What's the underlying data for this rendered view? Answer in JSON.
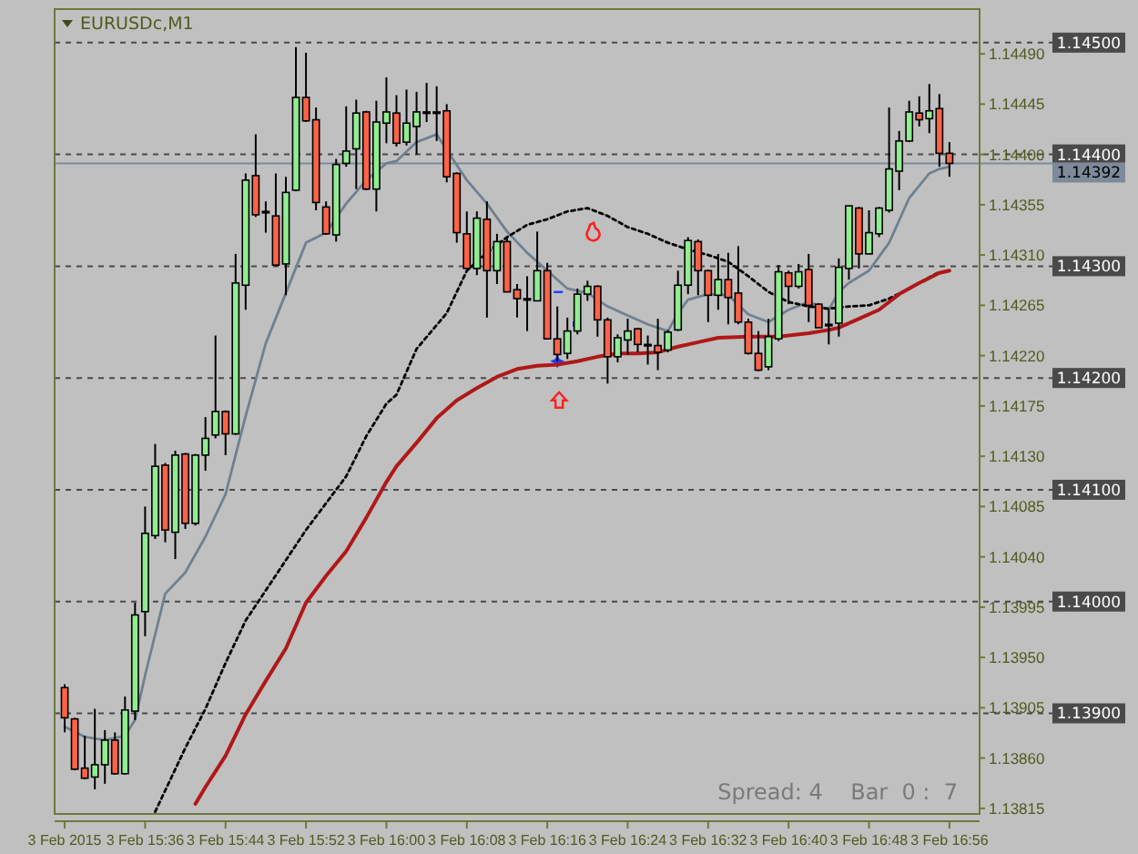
{
  "chart_data": {
    "type": "candlestick",
    "title": "EURUSDc,M1",
    "x": [
      "2015-02-03T15:28",
      "2015-02-03T15:29",
      "2015-02-03T15:30",
      "2015-02-03T15:31",
      "2015-02-03T15:32",
      "2015-02-03T15:33",
      "2015-02-03T15:34",
      "2015-02-03T15:35",
      "2015-02-03T15:36",
      "2015-02-03T15:37",
      "2015-02-03T15:38",
      "2015-02-03T15:39",
      "2015-02-03T15:40",
      "2015-02-03T15:41",
      "2015-02-03T15:42",
      "2015-02-03T15:43",
      "2015-02-03T15:44",
      "2015-02-03T15:45",
      "2015-02-03T15:46",
      "2015-02-03T15:47",
      "2015-02-03T15:48",
      "2015-02-03T15:49",
      "2015-02-03T15:50",
      "2015-02-03T15:51",
      "2015-02-03T15:52",
      "2015-02-03T15:53",
      "2015-02-03T15:54",
      "2015-02-03T15:55",
      "2015-02-03T15:56",
      "2015-02-03T15:57",
      "2015-02-03T15:58",
      "2015-02-03T15:59",
      "2015-02-03T16:00",
      "2015-02-03T16:01",
      "2015-02-03T16:02",
      "2015-02-03T16:03",
      "2015-02-03T16:04",
      "2015-02-03T16:05",
      "2015-02-03T16:06",
      "2015-02-03T16:07",
      "2015-02-03T16:08",
      "2015-02-03T16:09",
      "2015-02-03T16:10",
      "2015-02-03T16:11",
      "2015-02-03T16:12",
      "2015-02-03T16:13",
      "2015-02-03T16:14",
      "2015-02-03T16:15",
      "2015-02-03T16:16",
      "2015-02-03T16:17",
      "2015-02-03T16:18",
      "2015-02-03T16:19",
      "2015-02-03T16:20",
      "2015-02-03T16:21",
      "2015-02-03T16:22",
      "2015-02-03T16:23",
      "2015-02-03T16:24",
      "2015-02-03T16:25",
      "2015-02-03T16:26",
      "2015-02-03T16:27",
      "2015-02-03T16:28",
      "2015-02-03T16:29",
      "2015-02-03T16:30",
      "2015-02-03T16:31",
      "2015-02-03T16:32",
      "2015-02-03T16:33",
      "2015-02-03T16:34",
      "2015-02-03T16:35",
      "2015-02-03T16:36",
      "2015-02-03T16:37",
      "2015-02-03T16:38",
      "2015-02-03T16:39",
      "2015-02-03T16:40",
      "2015-02-03T16:41",
      "2015-02-03T16:42",
      "2015-02-03T16:43",
      "2015-02-03T16:44",
      "2015-02-03T16:45",
      "2015-02-03T16:46",
      "2015-02-03T16:47",
      "2015-02-03T16:48",
      "2015-02-03T16:49",
      "2015-02-03T16:50",
      "2015-02-03T16:51",
      "2015-02-03T16:52",
      "2015-02-03T16:53",
      "2015-02-03T16:54",
      "2015-02-03T16:55",
      "2015-02-03T16:56"
    ],
    "ohlc": [
      [
        1.13923,
        1.13926,
        1.13883,
        1.13896
      ],
      [
        1.13895,
        1.13896,
        1.13849,
        1.1385
      ],
      [
        1.13851,
        1.1388,
        1.13841,
        1.13842
      ],
      [
        1.13843,
        1.13904,
        1.13832,
        1.13854
      ],
      [
        1.13854,
        1.13885,
        1.13837,
        1.13876
      ],
      [
        1.13876,
        1.13883,
        1.13845,
        1.13846
      ],
      [
        1.13846,
        1.13915,
        1.13845,
        1.13903
      ],
      [
        1.13902,
        1.13999,
        1.13894,
        1.13988
      ],
      [
        1.13991,
        1.14085,
        1.13969,
        1.14061
      ],
      [
        1.14059,
        1.14141,
        1.14056,
        1.14121
      ],
      [
        1.14122,
        1.14124,
        1.14053,
        1.14064
      ],
      [
        1.14062,
        1.14135,
        1.14038,
        1.14131
      ],
      [
        1.14132,
        1.14133,
        1.14065,
        1.1407
      ],
      [
        1.1407,
        1.14132,
        1.14068,
        1.14131
      ],
      [
        1.14131,
        1.14165,
        1.14117,
        1.14146
      ],
      [
        1.14149,
        1.14238,
        1.14146,
        1.1417
      ],
      [
        1.1417,
        1.14171,
        1.14131,
        1.1415
      ],
      [
        1.1415,
        1.14311,
        1.14149,
        1.14285
      ],
      [
        1.14283,
        1.14383,
        1.14261,
        1.14377
      ],
      [
        1.14381,
        1.14418,
        1.14344,
        1.14346
      ],
      [
        1.14349,
        1.14358,
        1.1433,
        1.14348
      ],
      [
        1.14345,
        1.14383,
        1.143,
        1.14301
      ],
      [
        1.14302,
        1.1438,
        1.14274,
        1.14366
      ],
      [
        1.14368,
        1.14496,
        1.14367,
        1.14451
      ],
      [
        1.14451,
        1.14491,
        1.14429,
        1.1443
      ],
      [
        1.14431,
        1.14442,
        1.1435,
        1.14357
      ],
      [
        1.14353,
        1.14358,
        1.14328,
        1.14329
      ],
      [
        1.14328,
        1.14396,
        1.14322,
        1.14391
      ],
      [
        1.14392,
        1.14443,
        1.14389,
        1.14403
      ],
      [
        1.14405,
        1.14449,
        1.14369,
        1.14437
      ],
      [
        1.14438,
        1.14439,
        1.14368,
        1.14369
      ],
      [
        1.14369,
        1.14448,
        1.14349,
        1.14429
      ],
      [
        1.14428,
        1.14469,
        1.1441,
        1.14438
      ],
      [
        1.14437,
        1.14453,
        1.14407,
        1.1441
      ],
      [
        1.14411,
        1.14458,
        1.14408,
        1.14428
      ],
      [
        1.14425,
        1.14456,
        1.144,
        1.14438
      ],
      [
        1.14438,
        1.14464,
        1.14429,
        1.14438
      ],
      [
        1.14438,
        1.14461,
        1.14412,
        1.14438
      ],
      [
        1.14439,
        1.14445,
        1.14375,
        1.1438
      ],
      [
        1.14383,
        1.14384,
        1.14321,
        1.1433
      ],
      [
        1.14329,
        1.14349,
        1.14298,
        1.14298
      ],
      [
        1.14298,
        1.14349,
        1.14292,
        1.14343
      ],
      [
        1.14342,
        1.14358,
        1.14254,
        1.14296
      ],
      [
        1.14296,
        1.14329,
        1.14284,
        1.14322
      ],
      [
        1.14322,
        1.14326,
        1.14277,
        1.14277
      ],
      [
        1.14279,
        1.14284,
        1.14254,
        1.14271
      ],
      [
        1.14271,
        1.14291,
        1.14242,
        1.14271
      ],
      [
        1.14269,
        1.14331,
        1.14269,
        1.14296
      ],
      [
        1.14296,
        1.14303,
        1.14235,
        1.14235
      ],
      [
        1.14235,
        1.14264,
        1.14215,
        1.14221
      ],
      [
        1.14222,
        1.14254,
        1.14217,
        1.14242
      ],
      [
        1.14242,
        1.1428,
        1.14239,
        1.14275
      ],
      [
        1.14275,
        1.14287,
        1.14269,
        1.14282
      ],
      [
        1.14282,
        1.14283,
        1.14237,
        1.14252
      ],
      [
        1.14252,
        1.14254,
        1.14195,
        1.14219
      ],
      [
        1.14219,
        1.14239,
        1.14214,
        1.14236
      ],
      [
        1.14234,
        1.14253,
        1.14221,
        1.14242
      ],
      [
        1.14244,
        1.14245,
        1.14223,
        1.1423
      ],
      [
        1.1423,
        1.14238,
        1.14212,
        1.1423
      ],
      [
        1.14229,
        1.14253,
        1.14207,
        1.14223
      ],
      [
        1.14225,
        1.14243,
        1.14223,
        1.14241
      ],
      [
        1.14243,
        1.14296,
        1.14242,
        1.14283
      ],
      [
        1.14283,
        1.14326,
        1.14275,
        1.14323
      ],
      [
        1.14322,
        1.14324,
        1.14274,
        1.14296
      ],
      [
        1.14296,
        1.14297,
        1.1425,
        1.14274
      ],
      [
        1.14274,
        1.14311,
        1.14261,
        1.14288
      ],
      [
        1.14288,
        1.14312,
        1.14248,
        1.14272
      ],
      [
        1.14276,
        1.14318,
        1.14248,
        1.1425
      ],
      [
        1.1425,
        1.14253,
        1.14221,
        1.14222
      ],
      [
        1.14222,
        1.14242,
        1.14206,
        1.14207
      ],
      [
        1.1421,
        1.14253,
        1.14207,
        1.14237
      ],
      [
        1.14235,
        1.14301,
        1.14233,
        1.14295
      ],
      [
        1.14294,
        1.14296,
        1.14266,
        1.14282
      ],
      [
        1.14282,
        1.14302,
        1.1428,
        1.14295
      ],
      [
        1.14297,
        1.14311,
        1.1425,
        1.14265
      ],
      [
        1.14266,
        1.14267,
        1.14245,
        1.14245
      ],
      [
        1.14248,
        1.14261,
        1.1423,
        1.14248
      ],
      [
        1.14249,
        1.14307,
        1.14237,
        1.14299
      ],
      [
        1.14298,
        1.14354,
        1.14288,
        1.14354
      ],
      [
        1.14352,
        1.14353,
        1.14298,
        1.14311
      ],
      [
        1.14311,
        1.1435,
        1.14311,
        1.1433
      ],
      [
        1.14329,
        1.14353,
        1.14326,
        1.14352
      ],
      [
        1.1435,
        1.14442,
        1.14348,
        1.14387
      ],
      [
        1.14385,
        1.14421,
        1.14368,
        1.14412
      ],
      [
        1.14412,
        1.14448,
        1.14411,
        1.14438
      ],
      [
        1.14437,
        1.14452,
        1.14425,
        1.14431
      ],
      [
        1.14432,
        1.14463,
        1.14419,
        1.14439
      ],
      [
        1.14441,
        1.14454,
        1.14389,
        1.14401
      ],
      [
        1.14401,
        1.14411,
        1.1438,
        1.14392
      ]
    ],
    "colors": [
      "#ff6347",
      "#ff6347",
      "#ff6347",
      "#90ee90",
      "#90ee90",
      "#ff6347",
      "#90ee90",
      "#90ee90",
      "#90ee90",
      "#90ee90",
      "#ff6347",
      "#90ee90",
      "#ff6347",
      "#90ee90",
      "#90ee90",
      "#90ee90",
      "#ff6347",
      "#90ee90",
      "#90ee90",
      "#ff6347",
      "#ff6347",
      "#ff6347",
      "#90ee90",
      "#90ee90",
      "#ff6347",
      "#ff6347",
      "#ff6347",
      "#90ee90",
      "#90ee90",
      "#90ee90",
      "#ff6347",
      "#90ee90",
      "#90ee90",
      "#ff6347",
      "#90ee90",
      "#90ee90",
      "#90ee90",
      "#90ee90",
      "#ff6347",
      "#ff6347",
      "#ff6347",
      "#90ee90",
      "#ff6347",
      "#90ee90",
      "#ff6347",
      "#ff6347",
      "#90ee90",
      "#90ee90",
      "#ff6347",
      "#ff6347",
      "#90ee90",
      "#90ee90",
      "#90ee90",
      "#ff6347",
      "#ff6347",
      "#90ee90",
      "#90ee90",
      "#ff6347",
      "#90ee90",
      "#ff6347",
      "#90ee90",
      "#90ee90",
      "#90ee90",
      "#ff6347",
      "#ff6347",
      "#90ee90",
      "#ff6347",
      "#ff6347",
      "#ff6347",
      "#ff6347",
      "#90ee90",
      "#90ee90",
      "#ff6347",
      "#90ee90",
      "#ff6347",
      "#ff6347",
      "#90ee90",
      "#90ee90",
      "#90ee90",
      "#ff6347",
      "#90ee90",
      "#90ee90",
      "#90ee90",
      "#90ee90",
      "#90ee90",
      "#ff6347",
      "#90ee90",
      "#ff6347",
      "#ff6347"
    ],
    "series": [
      {
        "type": "line",
        "color": "#708090",
        "line_style": "solid",
        "x": [
          "2015-02-03T15:28",
          "2015-02-03T15:30",
          "2015-02-03T15:32",
          "2015-02-03T15:34",
          "2015-02-03T15:35",
          "2015-02-03T15:36",
          "2015-02-03T15:38",
          "2015-02-03T15:40",
          "2015-02-03T15:42",
          "2015-02-03T15:44",
          "2015-02-03T15:46",
          "2015-02-03T15:48",
          "2015-02-03T15:50",
          "2015-02-03T15:52",
          "2015-02-03T15:54",
          "2015-02-03T15:56",
          "2015-02-03T15:58",
          "2015-02-03T16:00",
          "2015-02-03T16:01",
          "2015-02-03T16:03",
          "2015-02-03T16:05",
          "2015-02-03T16:06",
          "2015-02-03T16:08",
          "2015-02-03T16:10",
          "2015-02-03T16:12",
          "2015-02-03T16:14",
          "2015-02-03T16:16",
          "2015-02-03T16:18",
          "2015-02-03T16:20",
          "2015-02-03T16:22",
          "2015-02-03T16:24",
          "2015-02-03T16:26",
          "2015-02-03T16:28",
          "2015-02-03T16:29",
          "2015-02-03T16:30",
          "2015-02-03T16:32",
          "2015-02-03T16:34",
          "2015-02-03T16:36",
          "2015-02-03T16:38",
          "2015-02-03T16:40",
          "2015-02-03T16:42",
          "2015-02-03T16:44",
          "2015-02-03T16:45",
          "2015-02-03T16:46",
          "2015-02-03T16:48",
          "2015-02-03T16:50",
          "2015-02-03T16:52",
          "2015-02-03T16:54",
          "2015-02-03T16:55",
          "2015-02-03T16:56"
        ],
        "values": [
          1.13888,
          1.13879,
          1.13876,
          1.1388,
          1.13894,
          1.13934,
          1.14007,
          1.14026,
          1.14058,
          1.14096,
          1.14166,
          1.14231,
          1.14276,
          1.14321,
          1.1433,
          1.14356,
          1.14377,
          1.14392,
          1.14394,
          1.14411,
          1.14418,
          1.14404,
          1.14377,
          1.14356,
          1.14331,
          1.14312,
          1.14296,
          1.1428,
          1.14276,
          1.14264,
          1.14256,
          1.14248,
          1.14242,
          1.14258,
          1.1427,
          1.14275,
          1.14274,
          1.14257,
          1.1425,
          1.14261,
          1.14268,
          1.14261,
          1.14277,
          1.14285,
          1.14296,
          1.14321,
          1.14361,
          1.14383,
          1.14387,
          1.14389
        ]
      },
      {
        "type": "line",
        "color": "#000000",
        "line_style": "dotted",
        "x": [
          "2015-02-03T15:37",
          "2015-02-03T15:40",
          "2015-02-03T15:42",
          "2015-02-03T15:44",
          "2015-02-03T15:46",
          "2015-02-03T15:48",
          "2015-02-03T15:50",
          "2015-02-03T15:52",
          "2015-02-03T15:54",
          "2015-02-03T15:56",
          "2015-02-03T15:58",
          "2015-02-03T16:00",
          "2015-02-03T16:01",
          "2015-02-03T16:03",
          "2015-02-03T16:06",
          "2015-02-03T16:08",
          "2015-02-03T16:10",
          "2015-02-03T16:12",
          "2015-02-03T16:14",
          "2015-02-03T16:16",
          "2015-02-03T16:18",
          "2015-02-03T16:20",
          "2015-02-03T16:22",
          "2015-02-03T16:24",
          "2015-02-03T16:26",
          "2015-02-03T16:28",
          "2015-02-03T16:30",
          "2015-02-03T16:32",
          "2015-02-03T16:34",
          "2015-02-03T16:36",
          "2015-02-03T16:38",
          "2015-02-03T16:40",
          "2015-02-03T16:42",
          "2015-02-03T16:44",
          "2015-02-03T16:46",
          "2015-02-03T16:48",
          "2015-02-03T16:50",
          "2015-02-03T16:52",
          "2015-02-03T16:54",
          "2015-02-03T16:55"
        ],
        "values": [
          1.13812,
          1.13869,
          1.13904,
          1.13945,
          1.13983,
          1.1401,
          1.14037,
          1.14064,
          1.14088,
          1.14112,
          1.14148,
          1.14177,
          1.14185,
          1.14226,
          1.14258,
          1.14296,
          1.14312,
          1.14326,
          1.14337,
          1.14342,
          1.14349,
          1.14352,
          1.14345,
          1.14335,
          1.14329,
          1.14321,
          1.14315,
          1.1431,
          1.14304,
          1.14291,
          1.14277,
          1.14268,
          1.14264,
          1.14262,
          1.14264,
          1.14265,
          1.14271,
          1.1428,
          1.1429,
          1.14295
        ]
      },
      {
        "type": "line",
        "color": "#b01818",
        "line_style": "solid",
        "x": [
          "2015-02-03T15:41",
          "2015-02-03T15:42",
          "2015-02-03T15:44",
          "2015-02-03T15:46",
          "2015-02-03T15:48",
          "2015-02-03T15:50",
          "2015-02-03T15:52",
          "2015-02-03T15:54",
          "2015-02-03T15:56",
          "2015-02-03T15:58",
          "2015-02-03T16:00",
          "2015-02-03T16:01",
          "2015-02-03T16:03",
          "2015-02-03T16:05",
          "2015-02-03T16:07",
          "2015-02-03T16:09",
          "2015-02-03T16:11",
          "2015-02-03T16:13",
          "2015-02-03T16:15",
          "2015-02-03T16:17",
          "2015-02-03T16:19",
          "2015-02-03T16:21",
          "2015-02-03T16:23",
          "2015-02-03T16:25",
          "2015-02-03T16:27",
          "2015-02-03T16:29",
          "2015-02-03T16:31",
          "2015-02-03T16:33",
          "2015-02-03T16:36",
          "2015-02-03T16:39",
          "2015-02-03T16:42",
          "2015-02-03T16:44",
          "2015-02-03T16:45",
          "2015-02-03T16:47",
          "2015-02-03T16:49",
          "2015-02-03T16:51",
          "2015-02-03T16:53",
          "2015-02-03T16:55",
          "2015-02-03T16:56"
        ],
        "values": [
          1.13819,
          1.13834,
          1.13862,
          1.13899,
          1.13929,
          1.13958,
          1.13999,
          1.14023,
          1.14045,
          1.14075,
          1.14107,
          1.14121,
          1.14142,
          1.14164,
          1.1418,
          1.14191,
          1.14201,
          1.14208,
          1.14211,
          1.14212,
          1.14215,
          1.14219,
          1.14222,
          1.14222,
          1.14223,
          1.14228,
          1.14232,
          1.14236,
          1.14237,
          1.14237,
          1.1424,
          1.14243,
          1.14245,
          1.14253,
          1.14261,
          1.14275,
          1.14285,
          1.14294,
          1.14296
        ]
      }
    ],
    "xlim": [
      "2015-02-03T15:27",
      "2015-02-03T16:59"
    ],
    "xticks": [
      {
        "value": "2015-02-03T15:28",
        "label": "3 Feb 2015"
      },
      {
        "value": "2015-02-03T15:36",
        "label": "3 Feb 15:36"
      },
      {
        "value": "2015-02-03T15:44",
        "label": "3 Feb 15:44"
      },
      {
        "value": "2015-02-03T15:52",
        "label": "3 Feb 15:52"
      },
      {
        "value": "2015-02-03T16:00",
        "label": "3 Feb 16:00"
      },
      {
        "value": "2015-02-03T16:08",
        "label": "3 Feb 16:08"
      },
      {
        "value": "2015-02-03T16:16",
        "label": "3 Feb 16:16"
      },
      {
        "value": "2015-02-03T16:24",
        "label": "3 Feb 16:24"
      },
      {
        "value": "2015-02-03T16:32",
        "label": "3 Feb 16:32"
      },
      {
        "value": "2015-02-03T16:40",
        "label": "3 Feb 16:40"
      },
      {
        "value": "2015-02-03T16:48",
        "label": "3 Feb 16:48"
      },
      {
        "value": "2015-02-03T16:56",
        "label": "3 Feb 16:56"
      }
    ],
    "ylim": [
      1.1381,
      1.1453
    ],
    "yticks": [
      {
        "value": 1.13815,
        "label": "1.13815"
      },
      {
        "value": 1.1386,
        "label": "1.13860"
      },
      {
        "value": 1.13905,
        "label": "1.13905"
      },
      {
        "value": 1.1395,
        "label": "1.13950"
      },
      {
        "value": 1.13995,
        "label": "1.13995"
      },
      {
        "value": 1.1404,
        "label": "1.14040"
      },
      {
        "value": 1.14085,
        "label": "1.14085"
      },
      {
        "value": 1.1413,
        "label": "1.14130"
      },
      {
        "value": 1.14175,
        "label": "1.14175"
      },
      {
        "value": 1.1422,
        "label": "1.14220"
      },
      {
        "value": 1.14265,
        "label": "1.14265"
      },
      {
        "value": 1.1431,
        "label": "1.14310"
      },
      {
        "value": 1.14355,
        "label": "1.14355"
      },
      {
        "value": 1.144,
        "label": "1.14400"
      },
      {
        "value": 1.14445,
        "label": "1.14445"
      },
      {
        "value": 1.1449,
        "label": "1.14490"
      }
    ],
    "ref_lines": [
      {
        "axis": "y",
        "value": 1.145,
        "label": "1.14500",
        "color": "#4a4a4a",
        "line_style": "dashed"
      },
      {
        "axis": "y",
        "value": 1.144,
        "label": "1.14400",
        "color": "#4a4a4a",
        "line_style": "dashed"
      },
      {
        "axis": "y",
        "value": 1.143,
        "label": "1.14300",
        "color": "#4a4a4a",
        "line_style": "dashed"
      },
      {
        "axis": "y",
        "value": 1.142,
        "label": "1.14200",
        "color": "#4a4a4a",
        "line_style": "dashed"
      },
      {
        "axis": "y",
        "value": 1.141,
        "label": "1.14100",
        "color": "#4a4a4a",
        "line_style": "dashed"
      },
      {
        "axis": "y",
        "value": 1.14,
        "label": "1.14000",
        "color": "#4a4a4a",
        "line_style": "dashed"
      },
      {
        "axis": "y",
        "value": 1.139,
        "label": "1.13900",
        "color": "#4a4a4a",
        "line_style": "dashed"
      },
      {
        "axis": "y",
        "value": 1.14392,
        "label": "1.14392",
        "color": "#7d8a9a",
        "line_style": "solid"
      }
    ],
    "annotations": [
      "Spread: 4    Bar  0 :  7"
    ]
  }
}
